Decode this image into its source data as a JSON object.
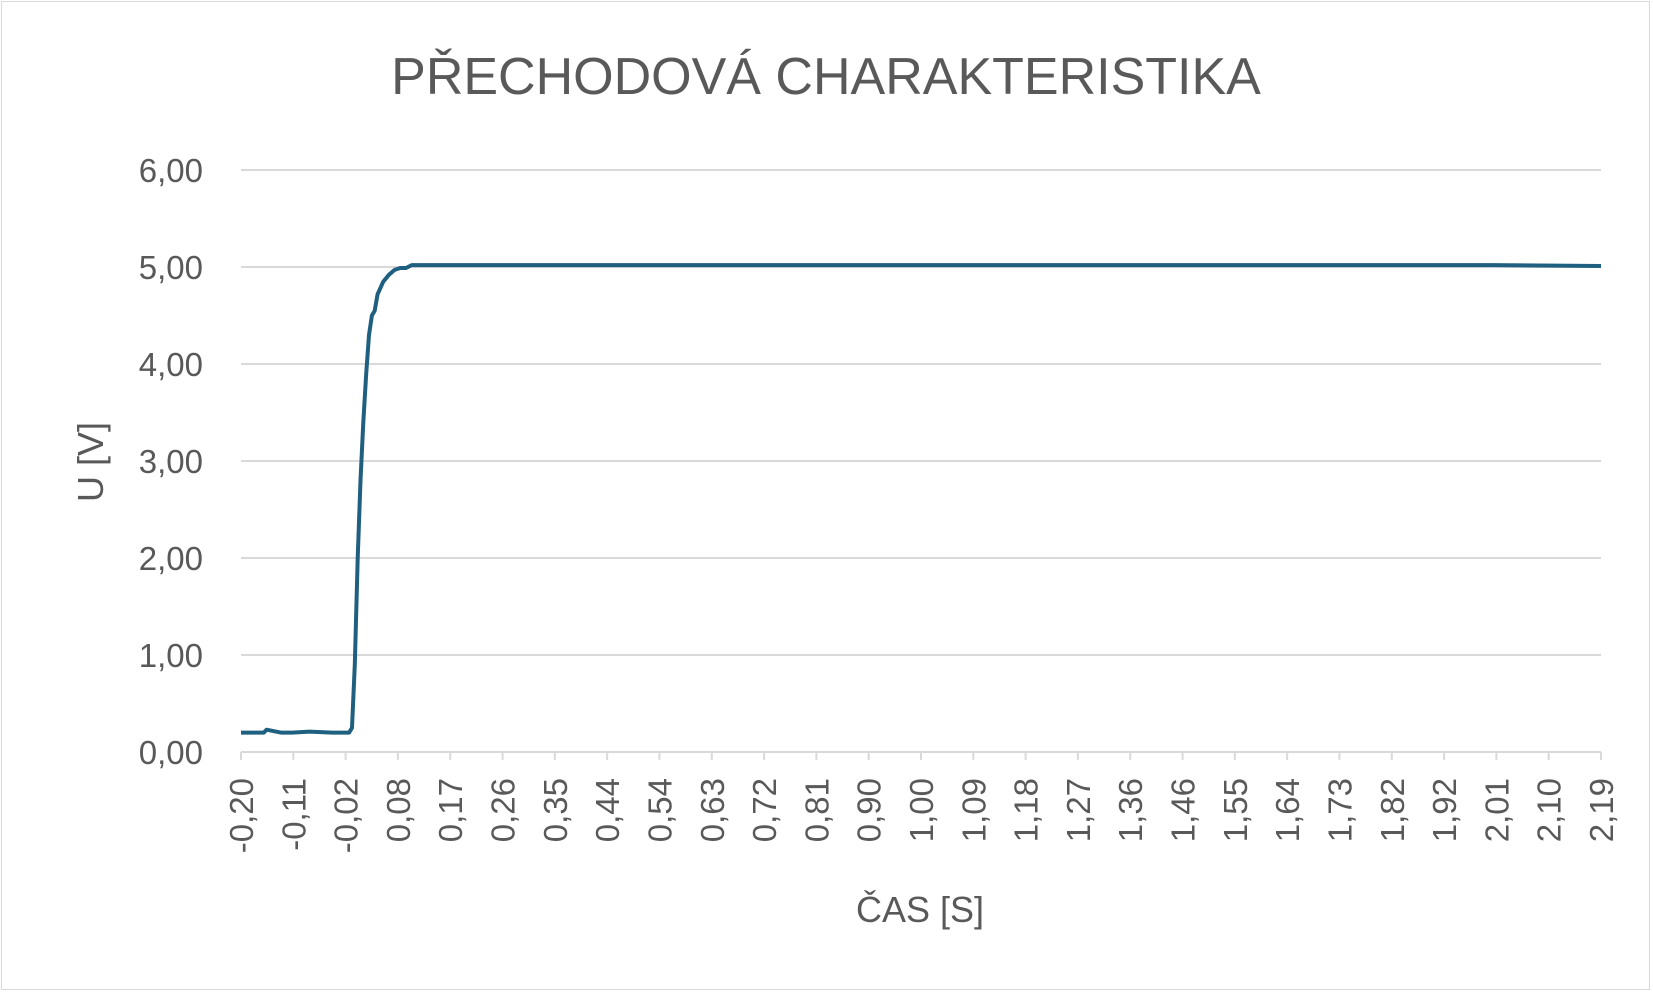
{
  "chart_data": {
    "type": "line",
    "title": "PŘECHODOVÁ CHARAKTERISTIKA",
    "xlabel": "ČAS [S]",
    "ylabel": "U [V]",
    "ylim": [
      0,
      6
    ],
    "y_ticks": [
      "0,00",
      "1,00",
      "2,00",
      "3,00",
      "4,00",
      "5,00",
      "6,00"
    ],
    "x_ticks": [
      "-0,20",
      "-0,11",
      "-0,02",
      "0,08",
      "0,17",
      "0,26",
      "0,35",
      "0,44",
      "0,54",
      "0,63",
      "0,72",
      "0,81",
      "0,90",
      "1,00",
      "1,09",
      "1,18",
      "1,27",
      "1,36",
      "1,46",
      "1,55",
      "1,64",
      "1,73",
      "1,82",
      "1,92",
      "2,01",
      "2,10",
      "2,19"
    ],
    "xlim": [
      -0.2,
      2.19
    ],
    "grid": true,
    "legend": "none",
    "line_color": "#1f5f7f",
    "series": [
      {
        "x": [
          -0.2,
          -0.16,
          -0.155,
          -0.13,
          -0.11,
          -0.08,
          -0.04,
          -0.01,
          -0.005,
          0.0,
          0.005,
          0.01,
          0.015,
          0.02,
          0.025,
          0.03,
          0.035,
          0.04,
          0.05,
          0.06,
          0.07,
          0.08,
          0.09,
          0.1,
          0.12,
          0.15,
          0.2,
          0.3,
          0.5,
          0.8,
          1.1,
          1.4,
          1.7,
          2.0,
          2.19
        ],
        "y": [
          0.2,
          0.2,
          0.23,
          0.2,
          0.2,
          0.21,
          0.2,
          0.2,
          0.25,
          0.9,
          2.0,
          2.8,
          3.4,
          3.9,
          4.3,
          4.5,
          4.55,
          4.72,
          4.85,
          4.92,
          4.97,
          4.99,
          4.99,
          5.02,
          5.02,
          5.02,
          5.02,
          5.02,
          5.02,
          5.02,
          5.02,
          5.02,
          5.02,
          5.02,
          5.01
        ]
      }
    ]
  }
}
